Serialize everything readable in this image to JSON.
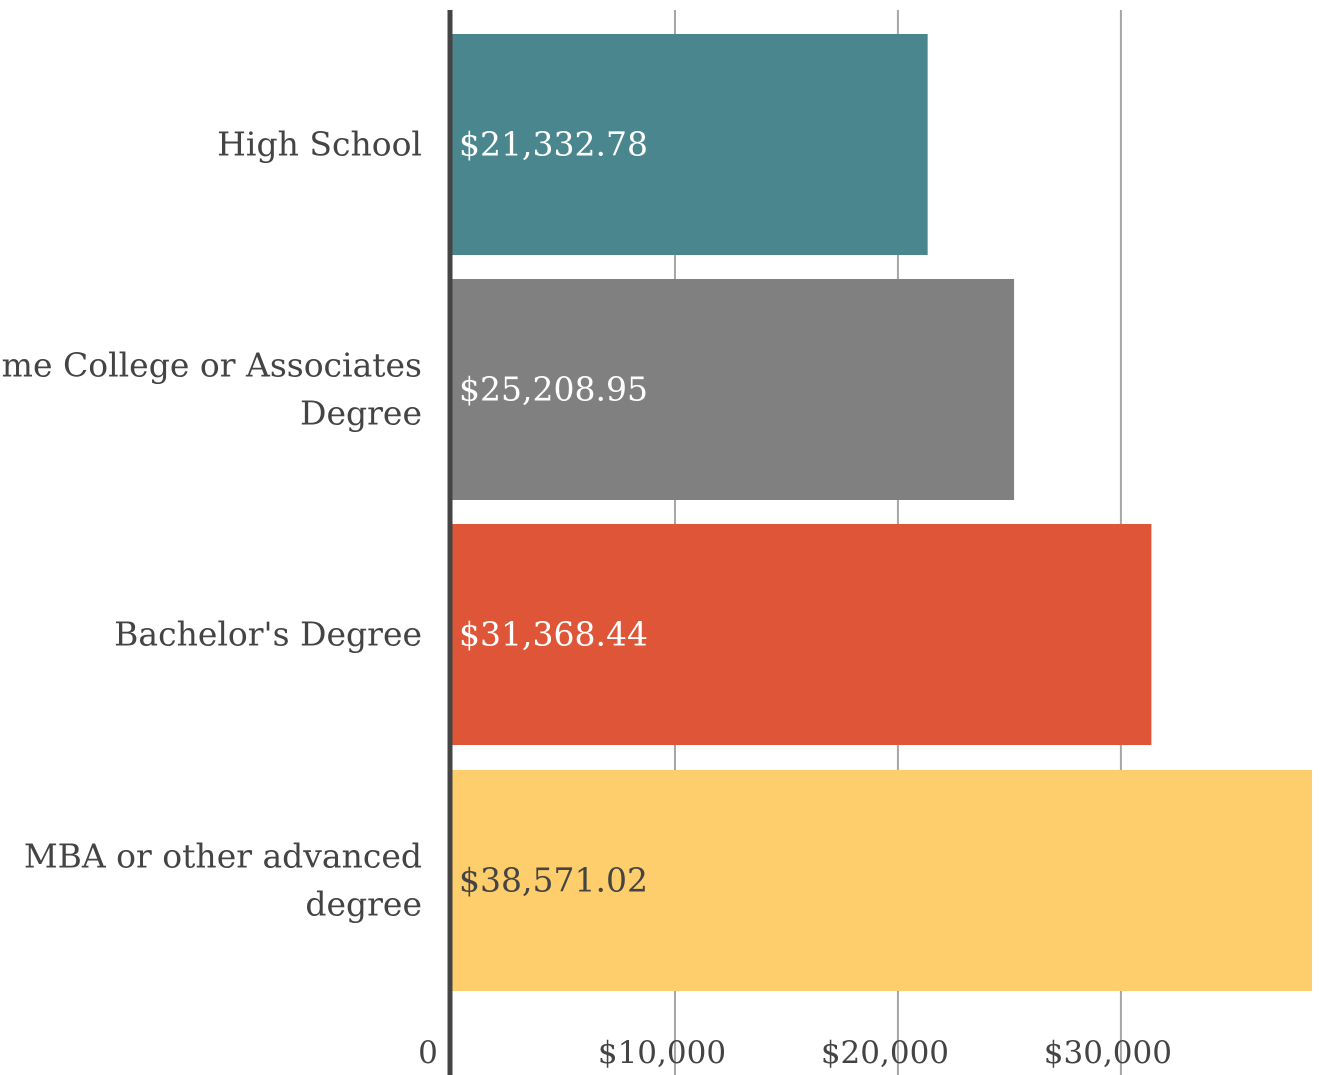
{
  "chart_data": {
    "type": "bar",
    "orientation": "horizontal",
    "categories": [
      [
        "High School"
      ],
      [
        "Some College or Associates",
        "Degree"
      ],
      [
        "Bachelor's Degree"
      ],
      [
        "MBA or other advanced",
        "degree"
      ]
    ],
    "values": [
      21332.78,
      25208.95,
      31368.44,
      38571.02
    ],
    "value_labels": [
      "$21,332.78",
      "$25,208.95",
      "$31,368.44",
      "$38,571.02"
    ],
    "bar_colors": [
      "#4a868d",
      "#808080",
      "#df5538",
      "#fece6c"
    ],
    "value_label_colors": [
      "#ffffff",
      "#ffffff",
      "#ffffff",
      "#444444"
    ],
    "x_ticks": [
      {
        "value": 0,
        "label": "0"
      },
      {
        "value": 10000,
        "label": "$10,000"
      },
      {
        "value": 20000,
        "label": "$20,000"
      },
      {
        "value": 30000,
        "label": "$30,000"
      }
    ],
    "xlim": [
      0,
      38571.02
    ],
    "grid": true,
    "title": "",
    "xlabel": "",
    "ylabel": ""
  }
}
